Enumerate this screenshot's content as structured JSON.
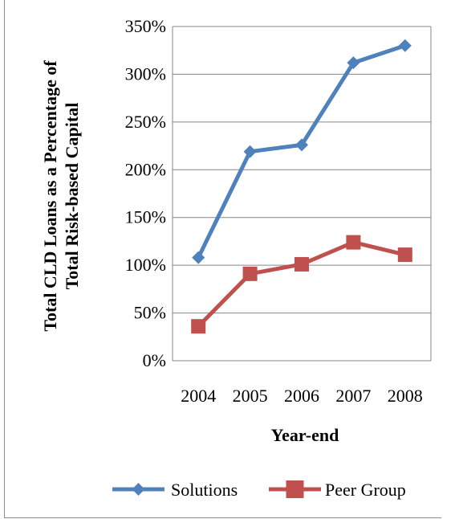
{
  "chart_data": {
    "type": "line",
    "title": "",
    "xlabel": "Year-end",
    "ylabel_line1": "Total CLD Loans as a Percentage of",
    "ylabel_line2": "Total Risk-based Capital",
    "categories": [
      "2004",
      "2005",
      "2006",
      "2007",
      "2008"
    ],
    "ylim": [
      0,
      350
    ],
    "yticks": [
      "0%",
      "50%",
      "100%",
      "150%",
      "200%",
      "250%",
      "300%",
      "350%"
    ],
    "grid": true,
    "legend_position": "bottom",
    "series": [
      {
        "name": "Solutions",
        "color": "#4F81BD",
        "marker": "diamond",
        "values": [
          108,
          219,
          226,
          312,
          330
        ]
      },
      {
        "name": "Peer Group",
        "color": "#C0504D",
        "marker": "square",
        "values": [
          36,
          91,
          101,
          124,
          111
        ]
      }
    ]
  }
}
